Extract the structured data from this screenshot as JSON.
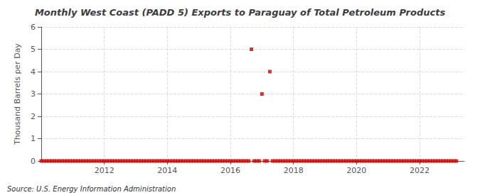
{
  "chart_data": {
    "type": "scatter",
    "title": "Monthly West Coast (PADD 5) Exports to Paraguay of Total Petroleum Products",
    "ylabel": "Thousand Barrels per Day",
    "annotations": [
      "Source: U.S. Energy Information Administration"
    ],
    "color": "#cc0000",
    "marker": "square",
    "grid": true,
    "xlim": [
      2010.0,
      2023.42
    ],
    "xticks": [
      2012,
      2014,
      2016,
      2018,
      2020,
      2022
    ],
    "ylim": [
      0,
      6
    ],
    "yticks": [
      0,
      1,
      2,
      3,
      4,
      5,
      6
    ],
    "x": [
      2010.0,
      2010.083,
      2010.167,
      2010.25,
      2010.333,
      2010.417,
      2010.5,
      2010.583,
      2010.667,
      2010.75,
      2010.833,
      2010.917,
      2011.0,
      2011.083,
      2011.167,
      2011.25,
      2011.333,
      2011.417,
      2011.5,
      2011.583,
      2011.667,
      2011.75,
      2011.833,
      2011.917,
      2012.0,
      2012.083,
      2012.167,
      2012.25,
      2012.333,
      2012.417,
      2012.5,
      2012.583,
      2012.667,
      2012.75,
      2012.833,
      2012.917,
      2013.0,
      2013.083,
      2013.167,
      2013.25,
      2013.333,
      2013.417,
      2013.5,
      2013.583,
      2013.667,
      2013.75,
      2013.833,
      2013.917,
      2014.0,
      2014.083,
      2014.167,
      2014.25,
      2014.333,
      2014.417,
      2014.5,
      2014.583,
      2014.667,
      2014.75,
      2014.833,
      2014.917,
      2015.0,
      2015.083,
      2015.167,
      2015.25,
      2015.333,
      2015.417,
      2015.5,
      2015.583,
      2015.667,
      2015.75,
      2015.833,
      2015.917,
      2016.0,
      2016.083,
      2016.167,
      2016.25,
      2016.333,
      2016.417,
      2016.5,
      2016.583,
      2016.667,
      2016.75,
      2016.833,
      2016.917,
      2017.0,
      2017.083,
      2017.167,
      2017.25,
      2017.333,
      2017.417,
      2017.5,
      2017.583,
      2017.667,
      2017.75,
      2017.833,
      2017.917,
      2018.0,
      2018.083,
      2018.167,
      2018.25,
      2018.333,
      2018.417,
      2018.5,
      2018.583,
      2018.667,
      2018.75,
      2018.833,
      2018.917,
      2019.0,
      2019.083,
      2019.167,
      2019.25,
      2019.333,
      2019.417,
      2019.5,
      2019.583,
      2019.667,
      2019.75,
      2019.833,
      2019.917,
      2020.0,
      2020.083,
      2020.167,
      2020.25,
      2020.333,
      2020.417,
      2020.5,
      2020.583,
      2020.667,
      2020.75,
      2020.833,
      2020.917,
      2021.0,
      2021.083,
      2021.167,
      2021.25,
      2021.333,
      2021.417,
      2021.5,
      2021.583,
      2021.667,
      2021.75,
      2021.833,
      2021.917,
      2022.0,
      2022.083,
      2022.167,
      2022.25,
      2022.333,
      2022.417,
      2022.5,
      2022.583,
      2022.667,
      2022.75,
      2022.833,
      2022.917,
      2023.0,
      2023.083,
      2023.167
    ],
    "values": [
      0,
      0,
      0,
      0,
      0,
      0,
      0,
      0,
      0,
      0,
      0,
      0,
      0,
      0,
      0,
      0,
      0,
      0,
      0,
      0,
      0,
      0,
      0,
      0,
      0,
      0,
      0,
      0,
      0,
      0,
      0,
      0,
      0,
      0,
      0,
      0,
      0,
      0,
      0,
      0,
      0,
      0,
      0,
      0,
      0,
      0,
      0,
      0,
      0,
      0,
      0,
      0,
      0,
      0,
      0,
      0,
      0,
      0,
      0,
      0,
      0,
      0,
      0,
      0,
      0,
      0,
      0,
      0,
      0,
      0,
      0,
      0,
      0,
      0,
      0,
      0,
      0,
      0,
      0,
      0,
      5.0,
      0,
      0,
      0,
      3.0,
      0,
      0,
      4.0,
      0,
      0,
      0,
      0,
      0,
      0,
      0,
      0,
      0,
      0,
      0,
      0,
      0,
      0,
      0,
      0,
      0,
      0,
      0,
      0,
      0,
      0,
      0,
      0,
      0,
      0,
      0,
      0,
      0,
      0,
      0,
      0,
      0,
      0,
      0,
      0,
      0,
      0,
      0,
      0,
      0,
      0,
      0,
      0,
      0,
      0,
      0,
      0,
      0,
      0,
      0,
      0,
      0,
      0,
      0,
      0,
      0,
      0,
      0,
      0,
      0,
      0,
      0,
      0,
      0,
      0,
      0,
      0,
      0,
      0,
      0
    ]
  }
}
